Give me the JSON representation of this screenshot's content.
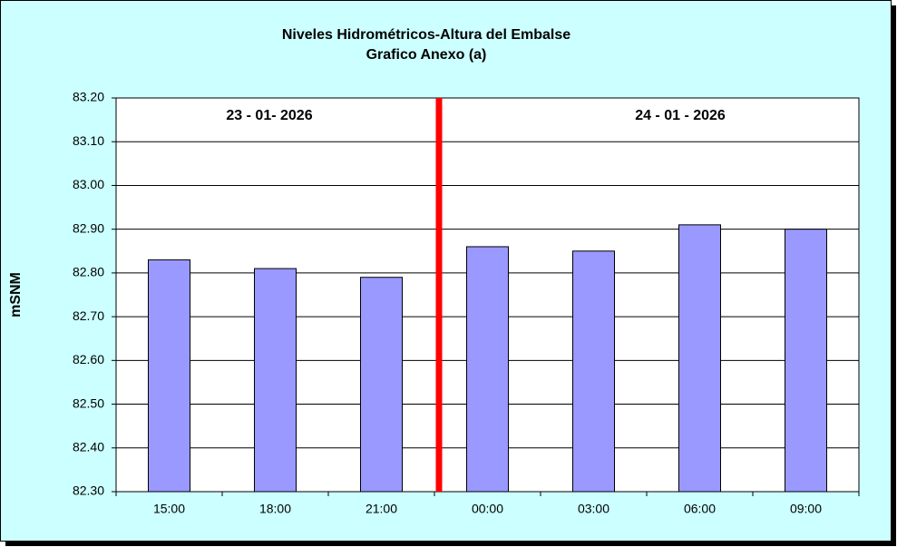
{
  "chart_data": {
    "type": "bar",
    "title": "Niveles Hidrométricos-Altura del Embalse",
    "subtitle": "Grafico Anexo (a)",
    "y_label": "mSNM",
    "annotations": [
      "23 - 01- 2026",
      "24 - 01 - 2026"
    ],
    "categories": [
      "15:00",
      "18:00",
      "21:00",
      "00:00",
      "03:00",
      "06:00",
      "09:00"
    ],
    "values": [
      82.83,
      82.81,
      82.79,
      82.86,
      82.85,
      82.91,
      82.9
    ],
    "color": "#9999ff",
    "ylim": [
      82.3,
      83.2
    ],
    "yticks": [
      {
        "value": 82.3,
        "label": "82.30"
      },
      {
        "value": 82.4,
        "label": "82.40"
      },
      {
        "value": 82.5,
        "label": "82.50"
      },
      {
        "value": 82.6,
        "label": "82.60"
      },
      {
        "value": 82.7,
        "label": "82.70"
      },
      {
        "value": 82.8,
        "label": "82.80"
      },
      {
        "value": 82.9,
        "label": "82.90"
      },
      {
        "value": 83.0,
        "label": "83.00"
      },
      {
        "value": 83.1,
        "label": "83.10"
      },
      {
        "value": 83.2,
        "label": "83.20"
      }
    ],
    "grid": true
  }
}
